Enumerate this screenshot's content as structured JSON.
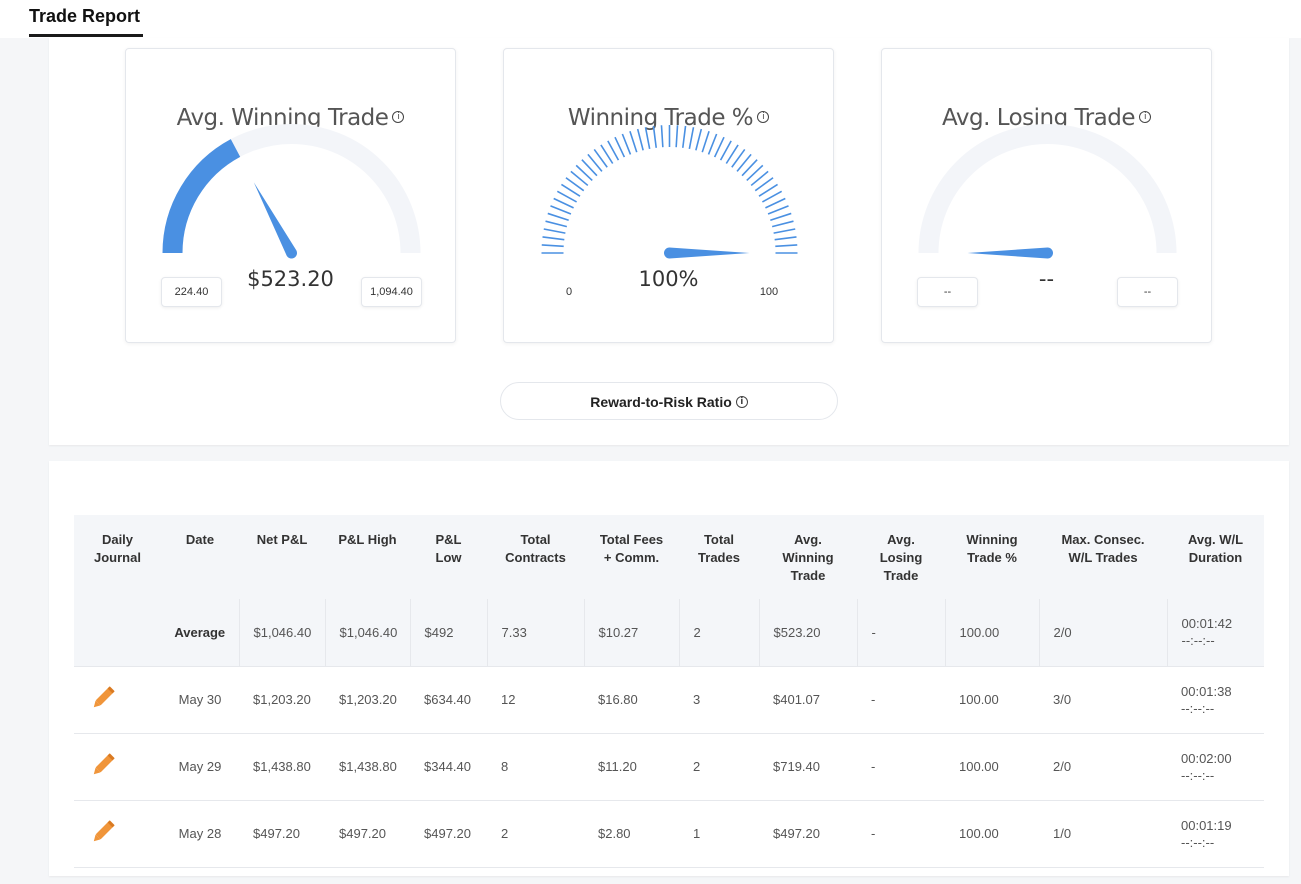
{
  "header": {
    "title": "Trade Report"
  },
  "colors": {
    "accent": "#4a90e2",
    "track": "#f3f5f9",
    "pencil": "#f0953a"
  },
  "gauges": [
    {
      "title": "Avg. Winning Trade",
      "value": "$523.20",
      "min": "224.40",
      "max": "1,094.40",
      "fill_fraction": 0.344,
      "needle_fraction": 0.344
    },
    {
      "title": "Winning Trade %",
      "value": "100%",
      "min": "0",
      "max": "100",
      "fill_fraction": 1.0,
      "needle_fraction": 1.0
    },
    {
      "title": "Avg. Losing Trade",
      "value": "--",
      "min": "--",
      "max": "--",
      "fill_fraction": 0.0,
      "needle_fraction": 0.0
    }
  ],
  "reward_risk": {
    "label": "Reward-to-Risk Ratio"
  },
  "table": {
    "headers": [
      [
        "Daily",
        "Journal"
      ],
      [
        "Date"
      ],
      [
        "Net P&L"
      ],
      [
        "P&L High"
      ],
      [
        "P&L",
        "Low"
      ],
      [
        "Total",
        "Contracts"
      ],
      [
        "Total Fees",
        "+ Comm."
      ],
      [
        "Total",
        "Trades"
      ],
      [
        "Avg.",
        "Winning",
        "Trade"
      ],
      [
        "Avg.",
        "Losing",
        "Trade"
      ],
      [
        "Winning",
        "Trade %"
      ],
      [
        "Max. Consec.",
        "W/L Trades"
      ],
      [
        "Avg. W/L",
        "Duration"
      ]
    ],
    "average": {
      "label": "Average",
      "net_pl": "$1,046.40",
      "pl_high": "$1,046.40",
      "pl_low": "$492",
      "contracts": "7.33",
      "fees": "$10.27",
      "trades": "2",
      "avg_win": "$523.20",
      "avg_loss": "-",
      "win_pct": "100.00",
      "max_consec": "2/0",
      "dur_win": "00:01:42",
      "dur_loss": "--:--:--"
    },
    "rows": [
      {
        "date": "May 30",
        "net_pl": "$1,203.20",
        "pl_high": "$1,203.20",
        "pl_low": "$634.40",
        "contracts": "12",
        "fees": "$16.80",
        "trades": "3",
        "avg_win": "$401.07",
        "avg_loss": "-",
        "win_pct": "100.00",
        "max_consec": "3/0",
        "dur_win": "00:01:38",
        "dur_loss": "--:--:--"
      },
      {
        "date": "May 29",
        "net_pl": "$1,438.80",
        "pl_high": "$1,438.80",
        "pl_low": "$344.40",
        "contracts": "8",
        "fees": "$11.20",
        "trades": "2",
        "avg_win": "$719.40",
        "avg_loss": "-",
        "win_pct": "100.00",
        "max_consec": "2/0",
        "dur_win": "00:02:00",
        "dur_loss": "--:--:--"
      },
      {
        "date": "May 28",
        "net_pl": "$497.20",
        "pl_high": "$497.20",
        "pl_low": "$497.20",
        "contracts": "2",
        "fees": "$2.80",
        "trades": "1",
        "avg_win": "$497.20",
        "avg_loss": "-",
        "win_pct": "100.00",
        "max_consec": "1/0",
        "dur_win": "00:01:19",
        "dur_loss": "--:--:--"
      }
    ]
  }
}
